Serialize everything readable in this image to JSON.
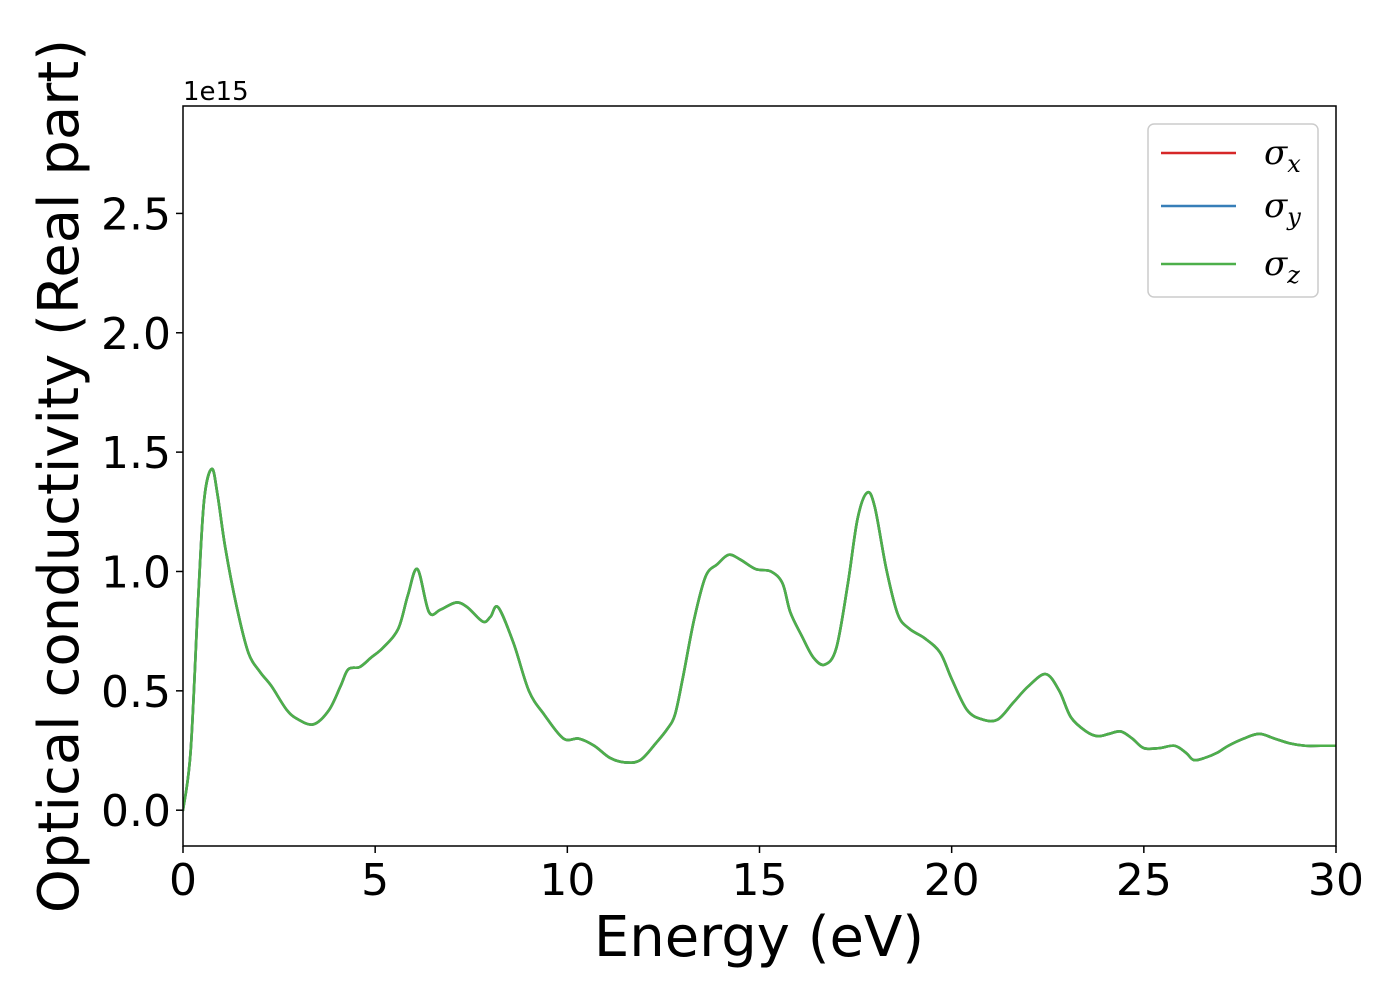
{
  "chart_data": {
    "type": "line",
    "title": "",
    "xlabel": "Energy (eV)",
    "ylabel": "Optical conductivity (Real part)",
    "y_offset_label": "1e15",
    "xlim": [
      0,
      30
    ],
    "ylim": [
      -0.15,
      2.95
    ],
    "xticks": [
      0,
      5,
      10,
      15,
      20,
      25,
      30
    ],
    "xtick_labels": [
      "0",
      "5",
      "10",
      "15",
      "20",
      "25",
      "30"
    ],
    "yticks": [
      0.0,
      0.5,
      1.0,
      1.5,
      2.0,
      2.5
    ],
    "ytick_labels": [
      "0.0",
      "0.5",
      "1.0",
      "1.5",
      "2.0",
      "2.5"
    ],
    "grid": false,
    "legend_position": "top-right",
    "series": [
      {
        "name": "σx",
        "symbol": "σ",
        "subscript": "x",
        "color": "#d62728",
        "x": [
          0,
          0.2,
          0.4,
          0.55,
          0.75,
          0.9,
          1.1,
          1.4,
          1.7,
          2.0,
          2.3,
          2.7,
          3.0,
          3.4,
          3.8,
          4.1,
          4.3,
          4.6,
          4.9,
          5.2,
          5.6,
          5.85,
          6.1,
          6.4,
          6.7,
          7.1,
          7.4,
          7.8,
          8.0,
          8.2,
          8.6,
          9.0,
          9.4,
          9.9,
          10.3,
          10.7,
          11.1,
          11.5,
          11.9,
          12.3,
          12.6,
          12.8,
          13.0,
          13.3,
          13.6,
          13.9,
          14.2,
          14.5,
          14.9,
          15.3,
          15.6,
          15.8,
          16.1,
          16.4,
          16.7,
          17.0,
          17.3,
          17.55,
          17.8,
          18.0,
          18.3,
          18.6,
          18.9,
          19.3,
          19.7,
          20.0,
          20.4,
          20.8,
          21.2,
          21.6,
          22.0,
          22.45,
          22.8,
          23.1,
          23.5,
          23.8,
          24.1,
          24.4,
          24.7,
          25.0,
          25.4,
          25.8,
          26.1,
          26.3,
          26.6,
          26.9,
          27.2,
          27.6,
          28.0,
          28.4,
          28.8,
          29.2,
          29.6,
          30.0
        ],
        "y": [
          0.0,
          0.25,
          0.9,
          1.3,
          1.43,
          1.32,
          1.1,
          0.85,
          0.66,
          0.58,
          0.52,
          0.42,
          0.38,
          0.36,
          0.42,
          0.52,
          0.59,
          0.6,
          0.64,
          0.68,
          0.76,
          0.9,
          1.01,
          0.83,
          0.84,
          0.87,
          0.85,
          0.79,
          0.81,
          0.85,
          0.7,
          0.5,
          0.4,
          0.3,
          0.3,
          0.27,
          0.22,
          0.2,
          0.21,
          0.28,
          0.34,
          0.4,
          0.55,
          0.8,
          0.98,
          1.03,
          1.07,
          1.05,
          1.01,
          1.0,
          0.95,
          0.83,
          0.73,
          0.64,
          0.61,
          0.68,
          0.95,
          1.22,
          1.33,
          1.27,
          1.01,
          0.82,
          0.76,
          0.72,
          0.66,
          0.55,
          0.42,
          0.38,
          0.38,
          0.45,
          0.52,
          0.57,
          0.5,
          0.39,
          0.33,
          0.31,
          0.32,
          0.33,
          0.3,
          0.26,
          0.26,
          0.27,
          0.24,
          0.21,
          0.22,
          0.24,
          0.27,
          0.3,
          0.32,
          0.3,
          0.28,
          0.27,
          0.27,
          0.27
        ]
      },
      {
        "name": "σy",
        "symbol": "σ",
        "subscript": "y",
        "color": "#377eb8",
        "x": [
          0,
          0.2,
          0.4,
          0.55,
          0.75,
          0.9,
          1.1,
          1.4,
          1.7,
          2.0,
          2.3,
          2.7,
          3.0,
          3.4,
          3.8,
          4.1,
          4.3,
          4.6,
          4.9,
          5.2,
          5.6,
          5.85,
          6.1,
          6.4,
          6.7,
          7.1,
          7.4,
          7.8,
          8.0,
          8.2,
          8.6,
          9.0,
          9.4,
          9.9,
          10.3,
          10.7,
          11.1,
          11.5,
          11.9,
          12.3,
          12.6,
          12.8,
          13.0,
          13.3,
          13.6,
          13.9,
          14.2,
          14.5,
          14.9,
          15.3,
          15.6,
          15.8,
          16.1,
          16.4,
          16.7,
          17.0,
          17.3,
          17.55,
          17.8,
          18.0,
          18.3,
          18.6,
          18.9,
          19.3,
          19.7,
          20.0,
          20.4,
          20.8,
          21.2,
          21.6,
          22.0,
          22.45,
          22.8,
          23.1,
          23.5,
          23.8,
          24.1,
          24.4,
          24.7,
          25.0,
          25.4,
          25.8,
          26.1,
          26.3,
          26.6,
          26.9,
          27.2,
          27.6,
          28.0,
          28.4,
          28.8,
          29.2,
          29.6,
          30.0
        ],
        "y": [
          0.0,
          0.25,
          0.9,
          1.3,
          1.43,
          1.32,
          1.1,
          0.85,
          0.66,
          0.58,
          0.52,
          0.42,
          0.38,
          0.36,
          0.42,
          0.52,
          0.59,
          0.6,
          0.64,
          0.68,
          0.76,
          0.9,
          1.01,
          0.83,
          0.84,
          0.87,
          0.85,
          0.79,
          0.81,
          0.85,
          0.7,
          0.5,
          0.4,
          0.3,
          0.3,
          0.27,
          0.22,
          0.2,
          0.21,
          0.28,
          0.34,
          0.4,
          0.55,
          0.8,
          0.98,
          1.03,
          1.07,
          1.05,
          1.01,
          1.0,
          0.95,
          0.83,
          0.73,
          0.64,
          0.61,
          0.68,
          0.95,
          1.22,
          1.33,
          1.27,
          1.01,
          0.82,
          0.76,
          0.72,
          0.66,
          0.55,
          0.42,
          0.38,
          0.38,
          0.45,
          0.52,
          0.57,
          0.5,
          0.39,
          0.33,
          0.31,
          0.32,
          0.33,
          0.3,
          0.26,
          0.26,
          0.27,
          0.24,
          0.21,
          0.22,
          0.24,
          0.27,
          0.3,
          0.32,
          0.3,
          0.28,
          0.27,
          0.27,
          0.27
        ]
      },
      {
        "name": "σz",
        "symbol": "σ",
        "subscript": "z",
        "color": "#4daf4a",
        "x": [
          0,
          0.2,
          0.4,
          0.55,
          0.75,
          0.9,
          1.1,
          1.4,
          1.7,
          2.0,
          2.3,
          2.7,
          3.0,
          3.4,
          3.8,
          4.1,
          4.3,
          4.6,
          4.9,
          5.2,
          5.6,
          5.85,
          6.1,
          6.4,
          6.7,
          7.1,
          7.4,
          7.8,
          8.0,
          8.2,
          8.6,
          9.0,
          9.4,
          9.9,
          10.3,
          10.7,
          11.1,
          11.5,
          11.9,
          12.3,
          12.6,
          12.8,
          13.0,
          13.3,
          13.6,
          13.9,
          14.2,
          14.5,
          14.9,
          15.3,
          15.6,
          15.8,
          16.1,
          16.4,
          16.7,
          17.0,
          17.3,
          17.55,
          17.8,
          18.0,
          18.3,
          18.6,
          18.9,
          19.3,
          19.7,
          20.0,
          20.4,
          20.8,
          21.2,
          21.6,
          22.0,
          22.45,
          22.8,
          23.1,
          23.5,
          23.8,
          24.1,
          24.4,
          24.7,
          25.0,
          25.4,
          25.8,
          26.1,
          26.3,
          26.6,
          26.9,
          27.2,
          27.6,
          28.0,
          28.4,
          28.8,
          29.2,
          29.6,
          30.0
        ],
        "y": [
          0.0,
          0.25,
          0.9,
          1.3,
          1.43,
          1.32,
          1.1,
          0.85,
          0.66,
          0.58,
          0.52,
          0.42,
          0.38,
          0.36,
          0.42,
          0.52,
          0.59,
          0.6,
          0.64,
          0.68,
          0.76,
          0.9,
          1.01,
          0.83,
          0.84,
          0.87,
          0.85,
          0.79,
          0.81,
          0.85,
          0.7,
          0.5,
          0.4,
          0.3,
          0.3,
          0.27,
          0.22,
          0.2,
          0.21,
          0.28,
          0.34,
          0.4,
          0.55,
          0.8,
          0.98,
          1.03,
          1.07,
          1.05,
          1.01,
          1.0,
          0.95,
          0.83,
          0.73,
          0.64,
          0.61,
          0.68,
          0.95,
          1.22,
          1.33,
          1.27,
          1.01,
          0.82,
          0.76,
          0.72,
          0.66,
          0.55,
          0.42,
          0.38,
          0.38,
          0.45,
          0.52,
          0.57,
          0.5,
          0.39,
          0.33,
          0.31,
          0.32,
          0.33,
          0.3,
          0.26,
          0.26,
          0.27,
          0.24,
          0.21,
          0.22,
          0.24,
          0.27,
          0.3,
          0.32,
          0.3,
          0.28,
          0.27,
          0.27,
          0.27
        ]
      }
    ]
  }
}
